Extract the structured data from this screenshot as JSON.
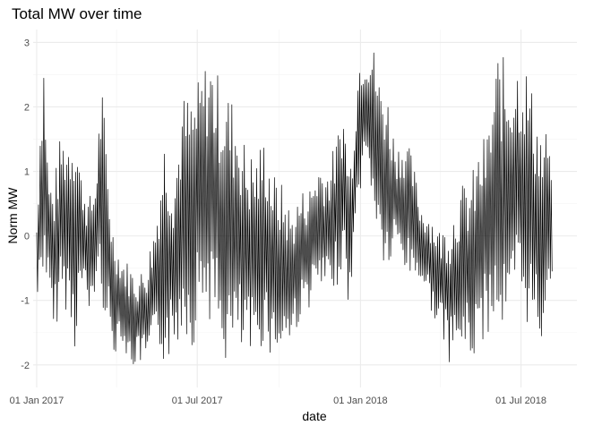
{
  "chart_data": {
    "type": "line",
    "title": "Total MW over time",
    "xlabel": "date",
    "ylabel": "Norm MW",
    "x_range": [
      "2016-12-28",
      "2018-09-02"
    ],
    "x_ticks": [
      {
        "date": "2017-01-01",
        "label": "01 Jan 2017"
      },
      {
        "date": "2017-07-01",
        "label": "01 Jul 2017"
      },
      {
        "date": "2018-01-01",
        "label": "01 Jan 2018"
      },
      {
        "date": "2018-07-01",
        "label": "01 Jul 2018"
      }
    ],
    "x_minor_ticks": [
      "2017-04-01",
      "2017-10-01",
      "2018-04-01"
    ],
    "ylim": [
      -2.35,
      3.2
    ],
    "y_ticks": [
      -2,
      -1,
      0,
      1,
      2,
      3
    ],
    "y_minor_ticks": [
      -1.5,
      -0.5,
      0.5,
      1.5,
      2.5
    ],
    "grid": true,
    "series": [
      {
        "color": "#000000",
        "envelope": [
          {
            "x": "2017-01-01",
            "low": -1.2,
            "high": 0.3
          },
          {
            "x": "2017-01-05",
            "low": -0.9,
            "high": 1.9
          },
          {
            "x": "2017-01-09",
            "low": -0.5,
            "high": 2.9
          },
          {
            "x": "2017-01-14",
            "low": -0.9,
            "high": 1.0
          },
          {
            "x": "2017-01-20",
            "low": -1.7,
            "high": 0.8
          },
          {
            "x": "2017-01-28",
            "low": -1.0,
            "high": 1.6
          },
          {
            "x": "2017-02-05",
            "low": -1.2,
            "high": 1.6
          },
          {
            "x": "2017-02-13",
            "low": -1.8,
            "high": 2.0
          },
          {
            "x": "2017-02-20",
            "low": -0.8,
            "high": 1.0
          },
          {
            "x": "2017-03-01",
            "low": -1.3,
            "high": 0.6
          },
          {
            "x": "2017-03-08",
            "low": -0.9,
            "high": 0.9
          },
          {
            "x": "2017-03-15",
            "low": -1.0,
            "high": 2.5
          },
          {
            "x": "2017-03-22",
            "low": -1.5,
            "high": 1.1
          },
          {
            "x": "2017-03-28",
            "low": -2.0,
            "high": 0.2
          },
          {
            "x": "2017-04-05",
            "low": -1.5,
            "high": -0.3
          },
          {
            "x": "2017-04-15",
            "low": -2.1,
            "high": -0.4
          },
          {
            "x": "2017-04-25",
            "low": -2.0,
            "high": -0.6
          },
          {
            "x": "2017-05-05",
            "low": -2.0,
            "high": -0.4
          },
          {
            "x": "2017-05-15",
            "low": -1.8,
            "high": 0.3
          },
          {
            "x": "2017-05-25",
            "low": -2.0,
            "high": 1.6
          },
          {
            "x": "2017-06-05",
            "low": -1.9,
            "high": 1.0
          },
          {
            "x": "2017-06-15",
            "low": -1.4,
            "high": 2.2
          },
          {
            "x": "2017-06-25",
            "low": -1.8,
            "high": 2.2
          },
          {
            "x": "2017-07-05",
            "low": -1.1,
            "high": 2.5
          },
          {
            "x": "2017-07-15",
            "low": -1.3,
            "high": 2.9
          },
          {
            "x": "2017-07-25",
            "low": -1.8,
            "high": 2.5
          },
          {
            "x": "2017-08-05",
            "low": -2.1,
            "high": 2.3
          },
          {
            "x": "2017-08-15",
            "low": -1.9,
            "high": 2.0
          },
          {
            "x": "2017-08-25",
            "low": -2.0,
            "high": 1.4
          },
          {
            "x": "2017-09-05",
            "low": -2.0,
            "high": 1.3
          },
          {
            "x": "2017-09-15",
            "low": -1.6,
            "high": 1.6
          },
          {
            "x": "2017-09-25",
            "low": -2.0,
            "high": 1.0
          },
          {
            "x": "2017-10-05",
            "low": -1.8,
            "high": 0.8
          },
          {
            "x": "2017-10-15",
            "low": -1.7,
            "high": 0.4
          },
          {
            "x": "2017-10-25",
            "low": -1.3,
            "high": 0.7
          },
          {
            "x": "2017-11-05",
            "low": -1.1,
            "high": 0.8
          },
          {
            "x": "2017-11-15",
            "low": -0.9,
            "high": 1.2
          },
          {
            "x": "2017-11-25",
            "low": -1.0,
            "high": 1.1
          },
          {
            "x": "2017-12-05",
            "low": -0.8,
            "high": 1.5
          },
          {
            "x": "2017-12-12",
            "low": -0.5,
            "high": 2.1
          },
          {
            "x": "2017-12-20",
            "low": -1.2,
            "high": 1.1
          },
          {
            "x": "2017-12-28",
            "low": 0.2,
            "high": 2.5
          },
          {
            "x": "2018-01-01",
            "low": 0.7,
            "high": 3.0
          },
          {
            "x": "2018-01-08",
            "low": 1.0,
            "high": 3.0
          },
          {
            "x": "2018-01-15",
            "low": 0.5,
            "high": 3.0
          },
          {
            "x": "2018-01-22",
            "low": -0.3,
            "high": 2.5
          },
          {
            "x": "2018-02-01",
            "low": -0.7,
            "high": 2.2
          },
          {
            "x": "2018-02-10",
            "low": -0.2,
            "high": 1.4
          },
          {
            "x": "2018-02-20",
            "low": -0.6,
            "high": 1.6
          },
          {
            "x": "2018-03-01",
            "low": -0.7,
            "high": 1.2
          },
          {
            "x": "2018-03-10",
            "low": -0.7,
            "high": 0.5
          },
          {
            "x": "2018-03-20",
            "low": -1.1,
            "high": 0.4
          },
          {
            "x": "2018-04-01",
            "low": -1.5,
            "high": 0.1
          },
          {
            "x": "2018-04-12",
            "low": -2.0,
            "high": 0.3
          },
          {
            "x": "2018-04-24",
            "low": -1.8,
            "high": 0.8
          },
          {
            "x": "2018-05-05",
            "low": -2.0,
            "high": 0.9
          },
          {
            "x": "2018-05-15",
            "low": -1.8,
            "high": 1.4
          },
          {
            "x": "2018-05-25",
            "low": -1.5,
            "high": 1.7
          },
          {
            "x": "2018-06-05",
            "low": -1.3,
            "high": 2.9
          },
          {
            "x": "2018-06-15",
            "low": -1.9,
            "high": 2.7
          },
          {
            "x": "2018-06-25",
            "low": -1.1,
            "high": 2.8
          },
          {
            "x": "2018-07-05",
            "low": -1.3,
            "high": 2.8
          },
          {
            "x": "2018-07-15",
            "low": -1.6,
            "high": 2.2
          },
          {
            "x": "2018-07-25",
            "low": -1.7,
            "high": 1.6
          },
          {
            "x": "2018-08-01",
            "low": -0.6,
            "high": 1.7
          },
          {
            "x": "2018-08-05",
            "low": -1.1,
            "high": 0.6
          }
        ]
      }
    ]
  }
}
